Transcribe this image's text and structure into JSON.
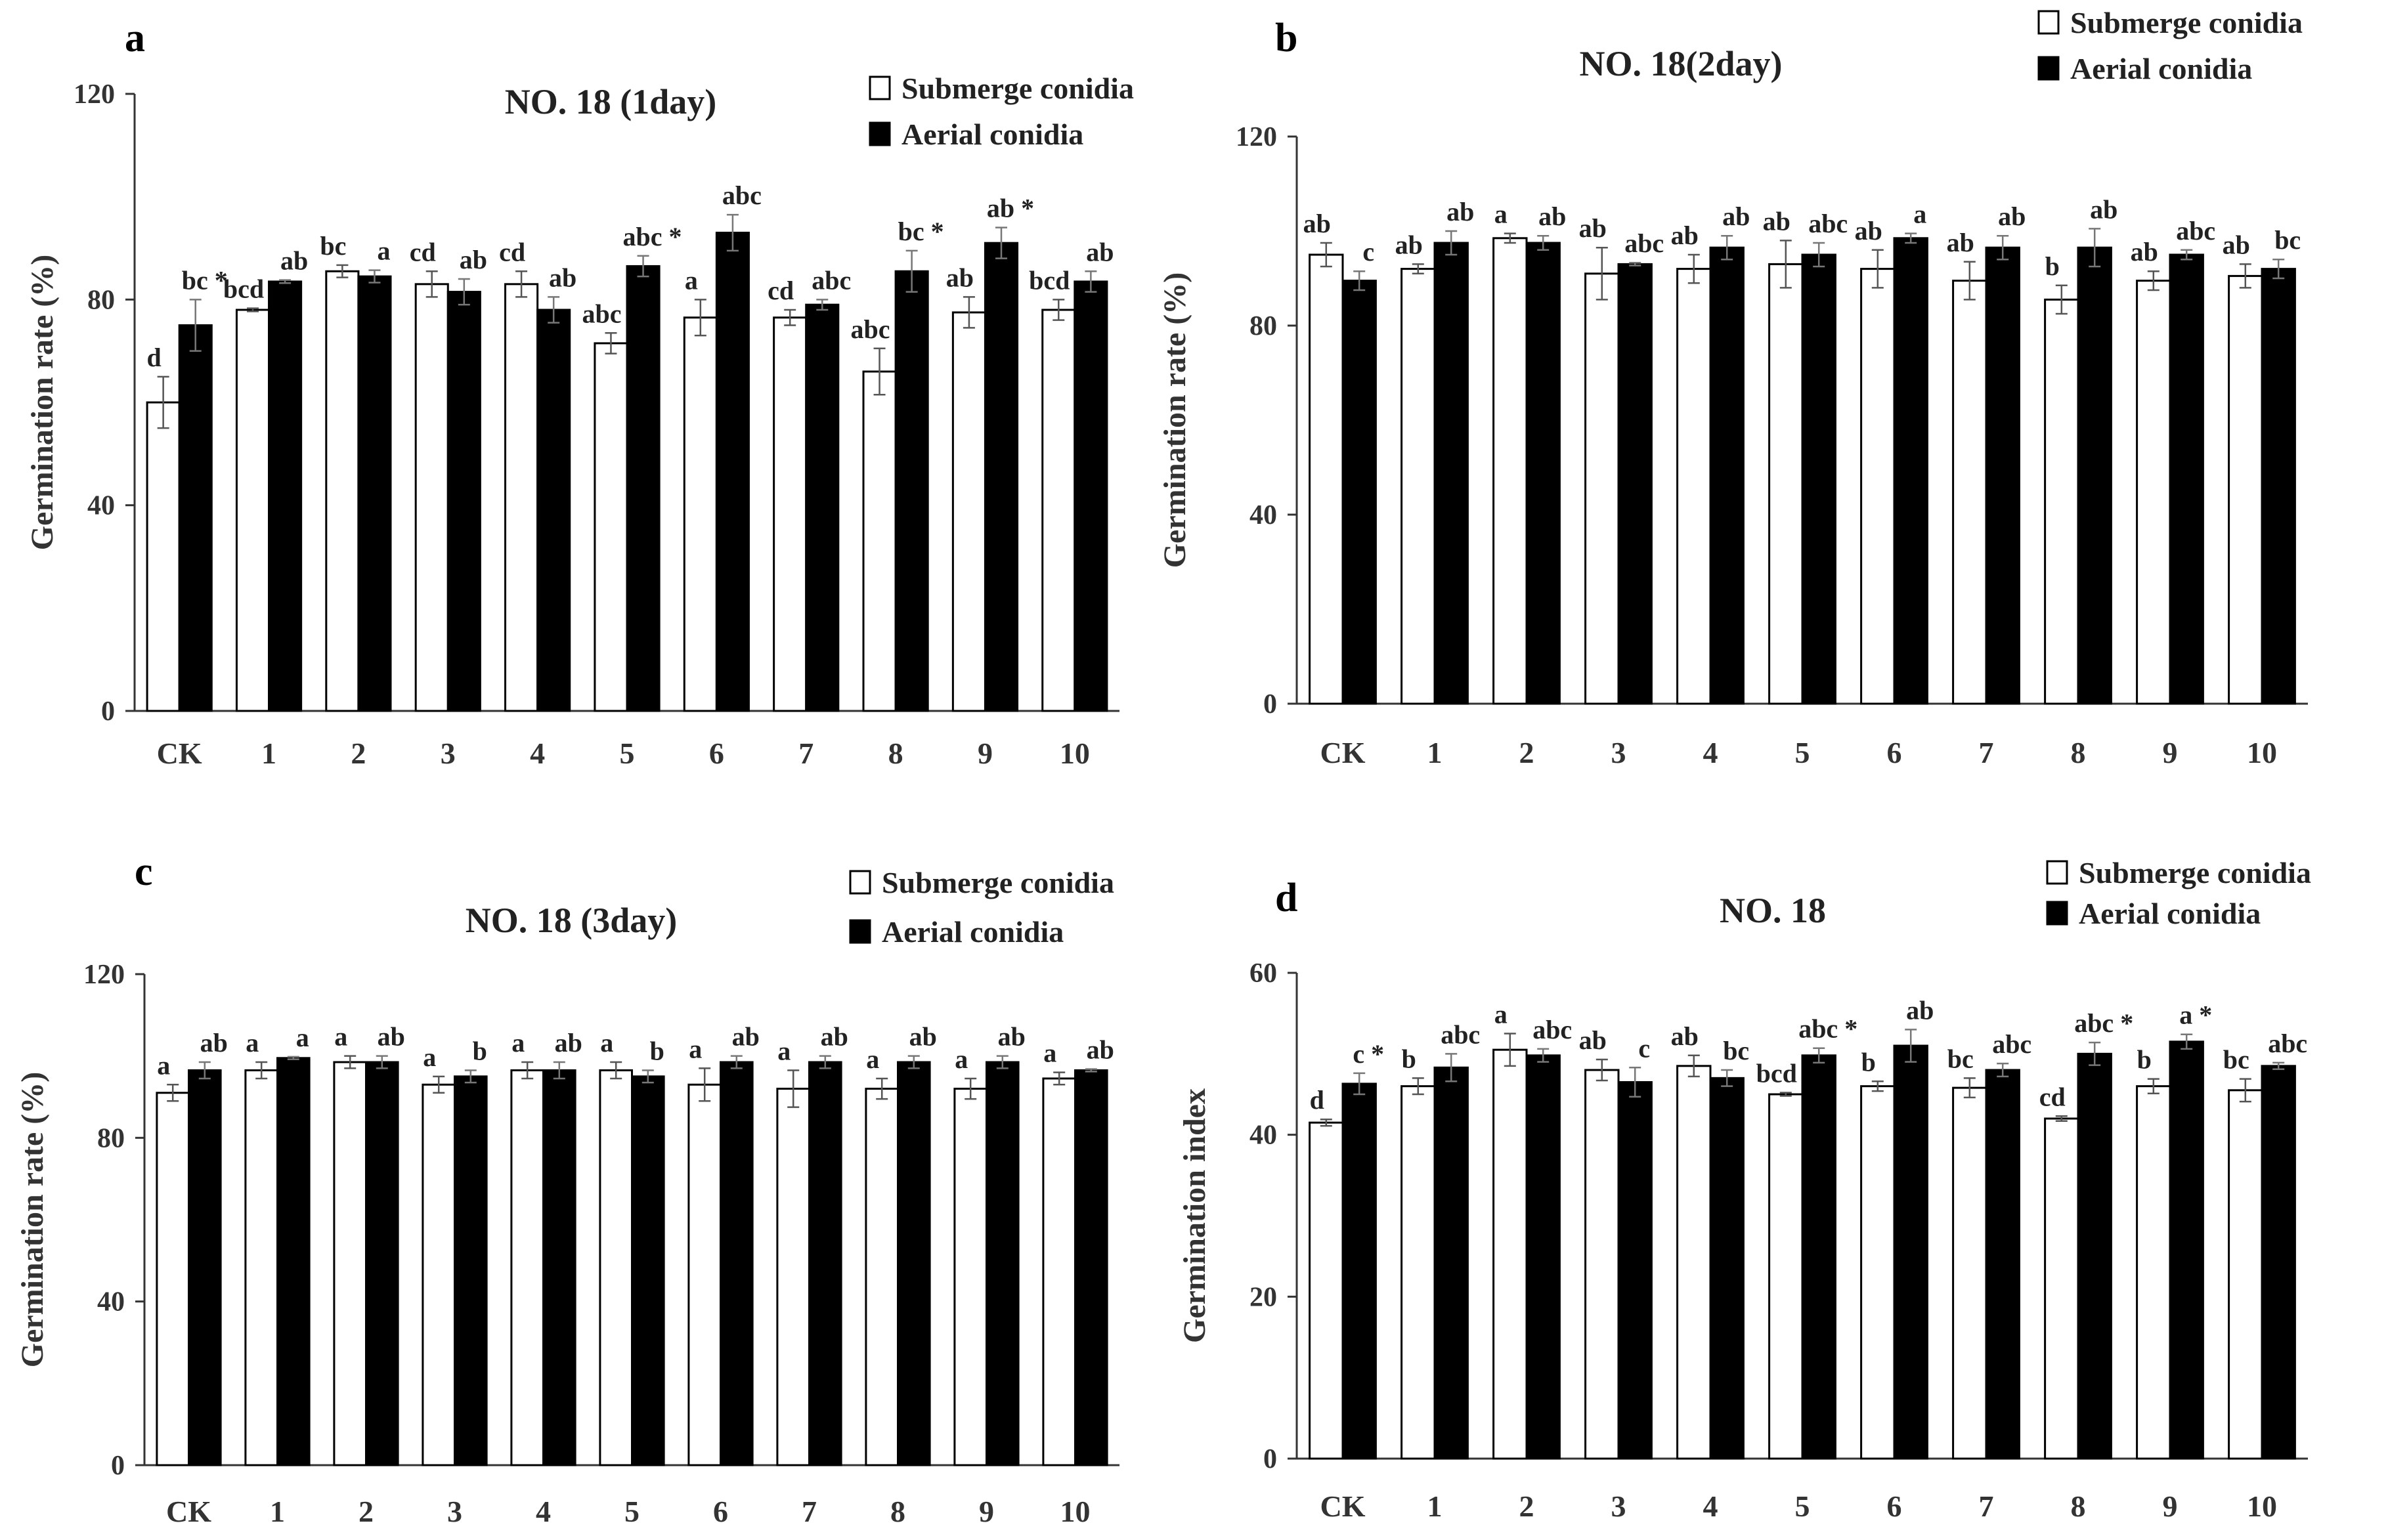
{
  "chart_data": [
    {
      "panel": "a",
      "type": "bar",
      "title": "NO. 18 (1day)",
      "ylabel": "Germination rate (%)",
      "xlabel": "",
      "ylim": [
        0,
        120
      ],
      "yticks": [
        0,
        40,
        80,
        120
      ],
      "categories": [
        "CK",
        "1",
        "2",
        "3",
        "4",
        "5",
        "6",
        "7",
        "8",
        "9",
        "10"
      ],
      "legend": {
        "position": "top-right"
      },
      "series": [
        {
          "name": "Submerge conidia",
          "color": "#ffffff",
          "values": [
            60,
            78,
            85.5,
            83,
            83,
            71.5,
            76.5,
            76.5,
            66,
            77.5,
            78
          ],
          "errors": [
            5,
            0.3,
            1.2,
            2.5,
            2.5,
            2,
            3.5,
            1.5,
            4.5,
            3,
            2
          ],
          "labels": [
            "d",
            "bcd",
            "bc",
            "cd",
            "cd",
            "abc",
            "a",
            "cd",
            "abc",
            "ab",
            "bcd"
          ]
        },
        {
          "name": "Aerial conidia",
          "color": "#000000",
          "values": [
            75,
            83.5,
            84.5,
            81.5,
            78,
            86.5,
            93,
            79,
            85.5,
            91,
            83.5
          ],
          "errors": [
            5,
            0.3,
            1.2,
            2.5,
            2.5,
            2,
            3.5,
            1,
            4,
            3,
            2
          ],
          "labels": [
            "bc *",
            "ab",
            "a",
            "ab",
            "ab",
            "abc *",
            "abc",
            "abc",
            "bc *",
            "ab *",
            "ab"
          ]
        }
      ]
    },
    {
      "panel": "b",
      "type": "bar",
      "title": "NO. 18(2day)",
      "ylabel": "Germination rate (%)",
      "xlabel": "",
      "ylim": [
        0,
        120
      ],
      "yticks": [
        0,
        40,
        80,
        120
      ],
      "categories": [
        "CK",
        "1",
        "2",
        "3",
        "4",
        "5",
        "6",
        "7",
        "8",
        "9",
        "10"
      ],
      "legend": {
        "position": "top-right"
      },
      "series": [
        {
          "name": "Submerge conidia",
          "color": "#ffffff",
          "values": [
            95,
            92,
            98.5,
            91,
            92,
            93,
            92,
            89.5,
            85.5,
            89.5,
            90.5
          ],
          "errors": [
            2.5,
            1,
            1,
            5.5,
            3,
            5,
            4,
            4,
            3,
            2,
            2.5
          ],
          "labels": [
            "ab",
            "ab",
            "a",
            "ab",
            "ab",
            "ab",
            "ab",
            "ab",
            "b",
            "ab",
            "ab"
          ]
        },
        {
          "name": "Aerial conidia",
          "color": "#000000",
          "values": [
            89.5,
            97.5,
            97.5,
            93,
            96.5,
            95,
            98.5,
            96.5,
            96.5,
            95,
            92
          ],
          "errors": [
            2,
            2.5,
            1.5,
            0.3,
            2.5,
            2.5,
            1,
            2.5,
            4,
            1,
            2
          ],
          "labels": [
            "c",
            "ab",
            "ab",
            "abc",
            "ab",
            "abc",
            "a",
            "ab",
            "ab",
            "abc",
            "bc"
          ]
        }
      ]
    },
    {
      "panel": "c",
      "type": "bar",
      "title": "NO. 18 (3day)",
      "ylabel": "Germination rate (%)",
      "xlabel": "",
      "ylim": [
        0,
        120
      ],
      "yticks": [
        0,
        40,
        80,
        120
      ],
      "categories": [
        "CK",
        "1",
        "2",
        "3",
        "4",
        "5",
        "6",
        "7",
        "8",
        "9",
        "10"
      ],
      "legend": {
        "position": "top-right"
      },
      "series": [
        {
          "name": "Submerge conidia",
          "color": "#ffffff",
          "values": [
            91,
            96.5,
            98.5,
            93,
            96.5,
            96.5,
            93,
            92,
            92,
            92,
            94.5
          ],
          "errors": [
            2,
            2,
            1.5,
            2,
            2,
            2,
            4,
            4.5,
            2.5,
            2.5,
            1.5
          ],
          "labels": [
            "a",
            "a",
            "a",
            "a",
            "a",
            "a",
            "a",
            "a",
            "a",
            "a",
            "a"
          ]
        },
        {
          "name": "Aerial conidia",
          "color": "#000000",
          "values": [
            96.5,
            99.5,
            98.5,
            95,
            96.5,
            95,
            98.5,
            98.5,
            98.5,
            98.5,
            96.5
          ],
          "errors": [
            2,
            0.3,
            1.5,
            1.5,
            2,
            1.5,
            1.5,
            1.5,
            1.5,
            1.5,
            0.3
          ],
          "labels": [
            "ab",
            "a",
            "ab",
            "b",
            "ab",
            "b",
            "ab",
            "ab",
            "ab",
            "ab",
            "ab"
          ]
        }
      ]
    },
    {
      "panel": "d",
      "type": "bar",
      "title": "NO. 18",
      "ylabel": "Germination index",
      "xlabel": "",
      "ylim": [
        0,
        60
      ],
      "yticks": [
        0,
        20,
        40,
        60
      ],
      "categories": [
        "CK",
        "1",
        "2",
        "3",
        "4",
        "5",
        "6",
        "7",
        "8",
        "9",
        "10"
      ],
      "legend": {
        "position": "top-right"
      },
      "series": [
        {
          "name": "Submerge conidia",
          "color": "#ffffff",
          "values": [
            41.5,
            46,
            50.5,
            48,
            48.5,
            45,
            46,
            45.8,
            42,
            46,
            45.5
          ],
          "errors": [
            0.4,
            1,
            2,
            1.3,
            1.3,
            0.2,
            0.6,
            1.2,
            0.3,
            0.9,
            1.4
          ],
          "labels": [
            "d",
            "b",
            "a",
            "ab",
            "ab",
            "bcd",
            "b",
            "bc",
            "cd",
            "b",
            "bc"
          ]
        },
        {
          "name": "Aerial conidia",
          "color": "#000000",
          "values": [
            46.3,
            48.3,
            49.8,
            46.5,
            47,
            49.8,
            51,
            48,
            50,
            51.5,
            48.5
          ],
          "errors": [
            1.3,
            1.7,
            0.8,
            1.8,
            1,
            0.9,
            2,
            0.8,
            1.4,
            0.9,
            0.4
          ],
          "labels": [
            "c *",
            "abc",
            "abc",
            "c",
            "bc",
            "abc *",
            "ab",
            "abc",
            "abc *",
            "a *",
            "abc"
          ]
        }
      ]
    }
  ]
}
